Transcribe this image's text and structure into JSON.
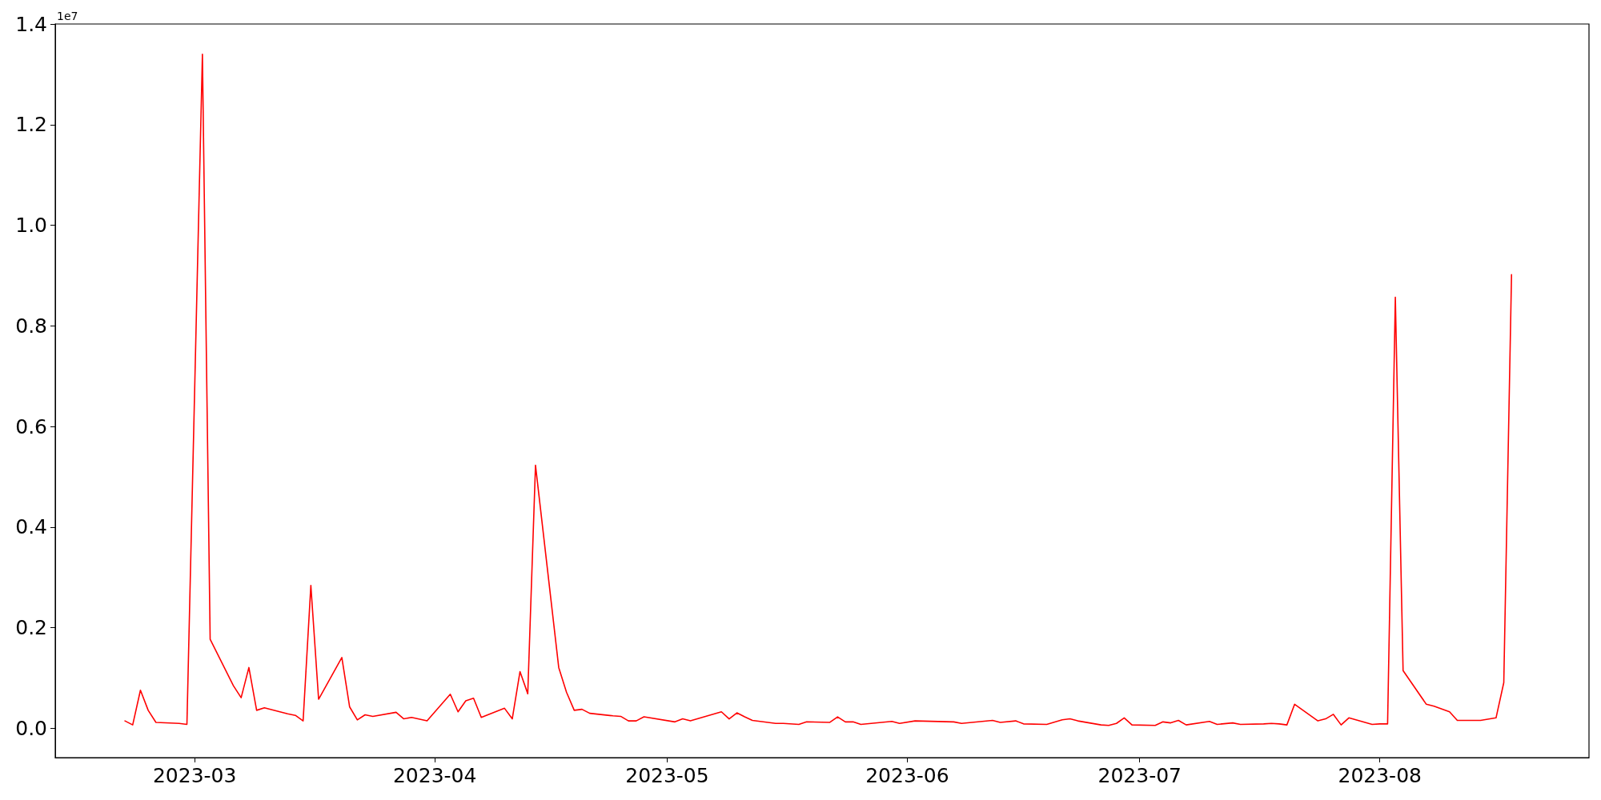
{
  "chart_data": {
    "type": "line",
    "annotations": [
      "1e7"
    ],
    "x": [
      "2023-02-20",
      "2023-02-21",
      "2023-02-22",
      "2023-02-23",
      "2023-02-24",
      "2023-02-27",
      "2023-02-28",
      "2023-03-02",
      "2023-03-03",
      "2023-03-06",
      "2023-03-07",
      "2023-03-08",
      "2023-03-09",
      "2023-03-10",
      "2023-03-13",
      "2023-03-14",
      "2023-03-15",
      "2023-03-16",
      "2023-03-17",
      "2023-03-20",
      "2023-03-21",
      "2023-03-22",
      "2023-03-23",
      "2023-03-24",
      "2023-03-27",
      "2023-03-28",
      "2023-03-29",
      "2023-03-31",
      "2023-04-03",
      "2023-04-04",
      "2023-04-05",
      "2023-04-06",
      "2023-04-07",
      "2023-04-10",
      "2023-04-11",
      "2023-04-12",
      "2023-04-13",
      "2023-04-14",
      "2023-04-17",
      "2023-04-18",
      "2023-04-19",
      "2023-04-20",
      "2023-04-21",
      "2023-04-24",
      "2023-04-25",
      "2023-04-26",
      "2023-04-27",
      "2023-04-28",
      "2023-05-02",
      "2023-05-03",
      "2023-05-04",
      "2023-05-08",
      "2023-05-09",
      "2023-05-10",
      "2023-05-11",
      "2023-05-12",
      "2023-05-15",
      "2023-05-16",
      "2023-05-18",
      "2023-05-19",
      "2023-05-22",
      "2023-05-23",
      "2023-05-24",
      "2023-05-25",
      "2023-05-26",
      "2023-05-30",
      "2023-05-31",
      "2023-06-02",
      "2023-06-07",
      "2023-06-08",
      "2023-06-12",
      "2023-06-13",
      "2023-06-15",
      "2023-06-16",
      "2023-06-19",
      "2023-06-21",
      "2023-06-22",
      "2023-06-23",
      "2023-06-26",
      "2023-06-27",
      "2023-06-28",
      "2023-06-29",
      "2023-06-30",
      "2023-07-03",
      "2023-07-04",
      "2023-07-05",
      "2023-07-06",
      "2023-07-07",
      "2023-07-10",
      "2023-07-11",
      "2023-07-13",
      "2023-07-14",
      "2023-07-17",
      "2023-07-18",
      "2023-07-19",
      "2023-07-20",
      "2023-07-21",
      "2023-07-24",
      "2023-07-25",
      "2023-07-26",
      "2023-07-27",
      "2023-07-28",
      "2023-07-31",
      "2023-08-01",
      "2023-08-02",
      "2023-08-03",
      "2023-08-04",
      "2023-08-07",
      "2023-08-08",
      "2023-08-10",
      "2023-08-11",
      "2023-08-14",
      "2023-08-16",
      "2023-08-17",
      "2023-08-18"
    ],
    "series": [
      {
        "color": "#ff0000",
        "values": [
          0.015,
          0.007,
          0.076,
          0.036,
          0.012,
          0.01,
          0.008,
          1.34,
          0.177,
          0.085,
          0.061,
          0.121,
          0.036,
          0.041,
          0.029,
          0.026,
          0.015,
          0.284,
          0.058,
          0.141,
          0.043,
          0.017,
          0.027,
          0.024,
          0.032,
          0.019,
          0.022,
          0.015,
          0.068,
          0.033,
          0.055,
          0.06,
          0.022,
          0.04,
          0.019,
          0.113,
          0.069,
          0.523,
          0.121,
          0.072,
          0.036,
          0.038,
          0.03,
          0.025,
          0.024,
          0.015,
          0.015,
          0.023,
          0.013,
          0.019,
          0.015,
          0.033,
          0.019,
          0.031,
          0.023,
          0.016,
          0.01,
          0.01,
          0.008,
          0.013,
          0.012,
          0.023,
          0.013,
          0.013,
          0.008,
          0.014,
          0.01,
          0.015,
          0.013,
          0.01,
          0.016,
          0.012,
          0.015,
          0.009,
          0.008,
          0.017,
          0.019,
          0.015,
          0.007,
          0.006,
          0.01,
          0.021,
          0.007,
          0.006,
          0.013,
          0.011,
          0.016,
          0.007,
          0.014,
          0.008,
          0.011,
          0.008,
          0.009,
          0.01,
          0.009,
          0.007,
          0.048,
          0.015,
          0.019,
          0.028,
          0.007,
          0.021,
          0.008,
          0.009,
          0.009,
          0.857,
          0.115,
          0.048,
          0.044,
          0.033,
          0.016,
          0.016,
          0.021,
          0.091,
          0.902
        ]
      }
    ],
    "xlim": [
      "2023-02-11",
      "2023-08-28"
    ],
    "ylim": [
      -0.058,
      1.4
    ],
    "xticks": [
      "2023-03",
      "2023-04",
      "2023-05",
      "2023-06",
      "2023-07",
      "2023-08"
    ],
    "yticks": [
      {
        "value": 0,
        "label": "0.0"
      },
      0.2,
      0.4,
      0.6,
      0.8,
      {
        "value": 1,
        "label": "1.0"
      },
      1.2,
      1.4
    ],
    "marker": "none",
    "line_style": "solid",
    "grid": false
  }
}
